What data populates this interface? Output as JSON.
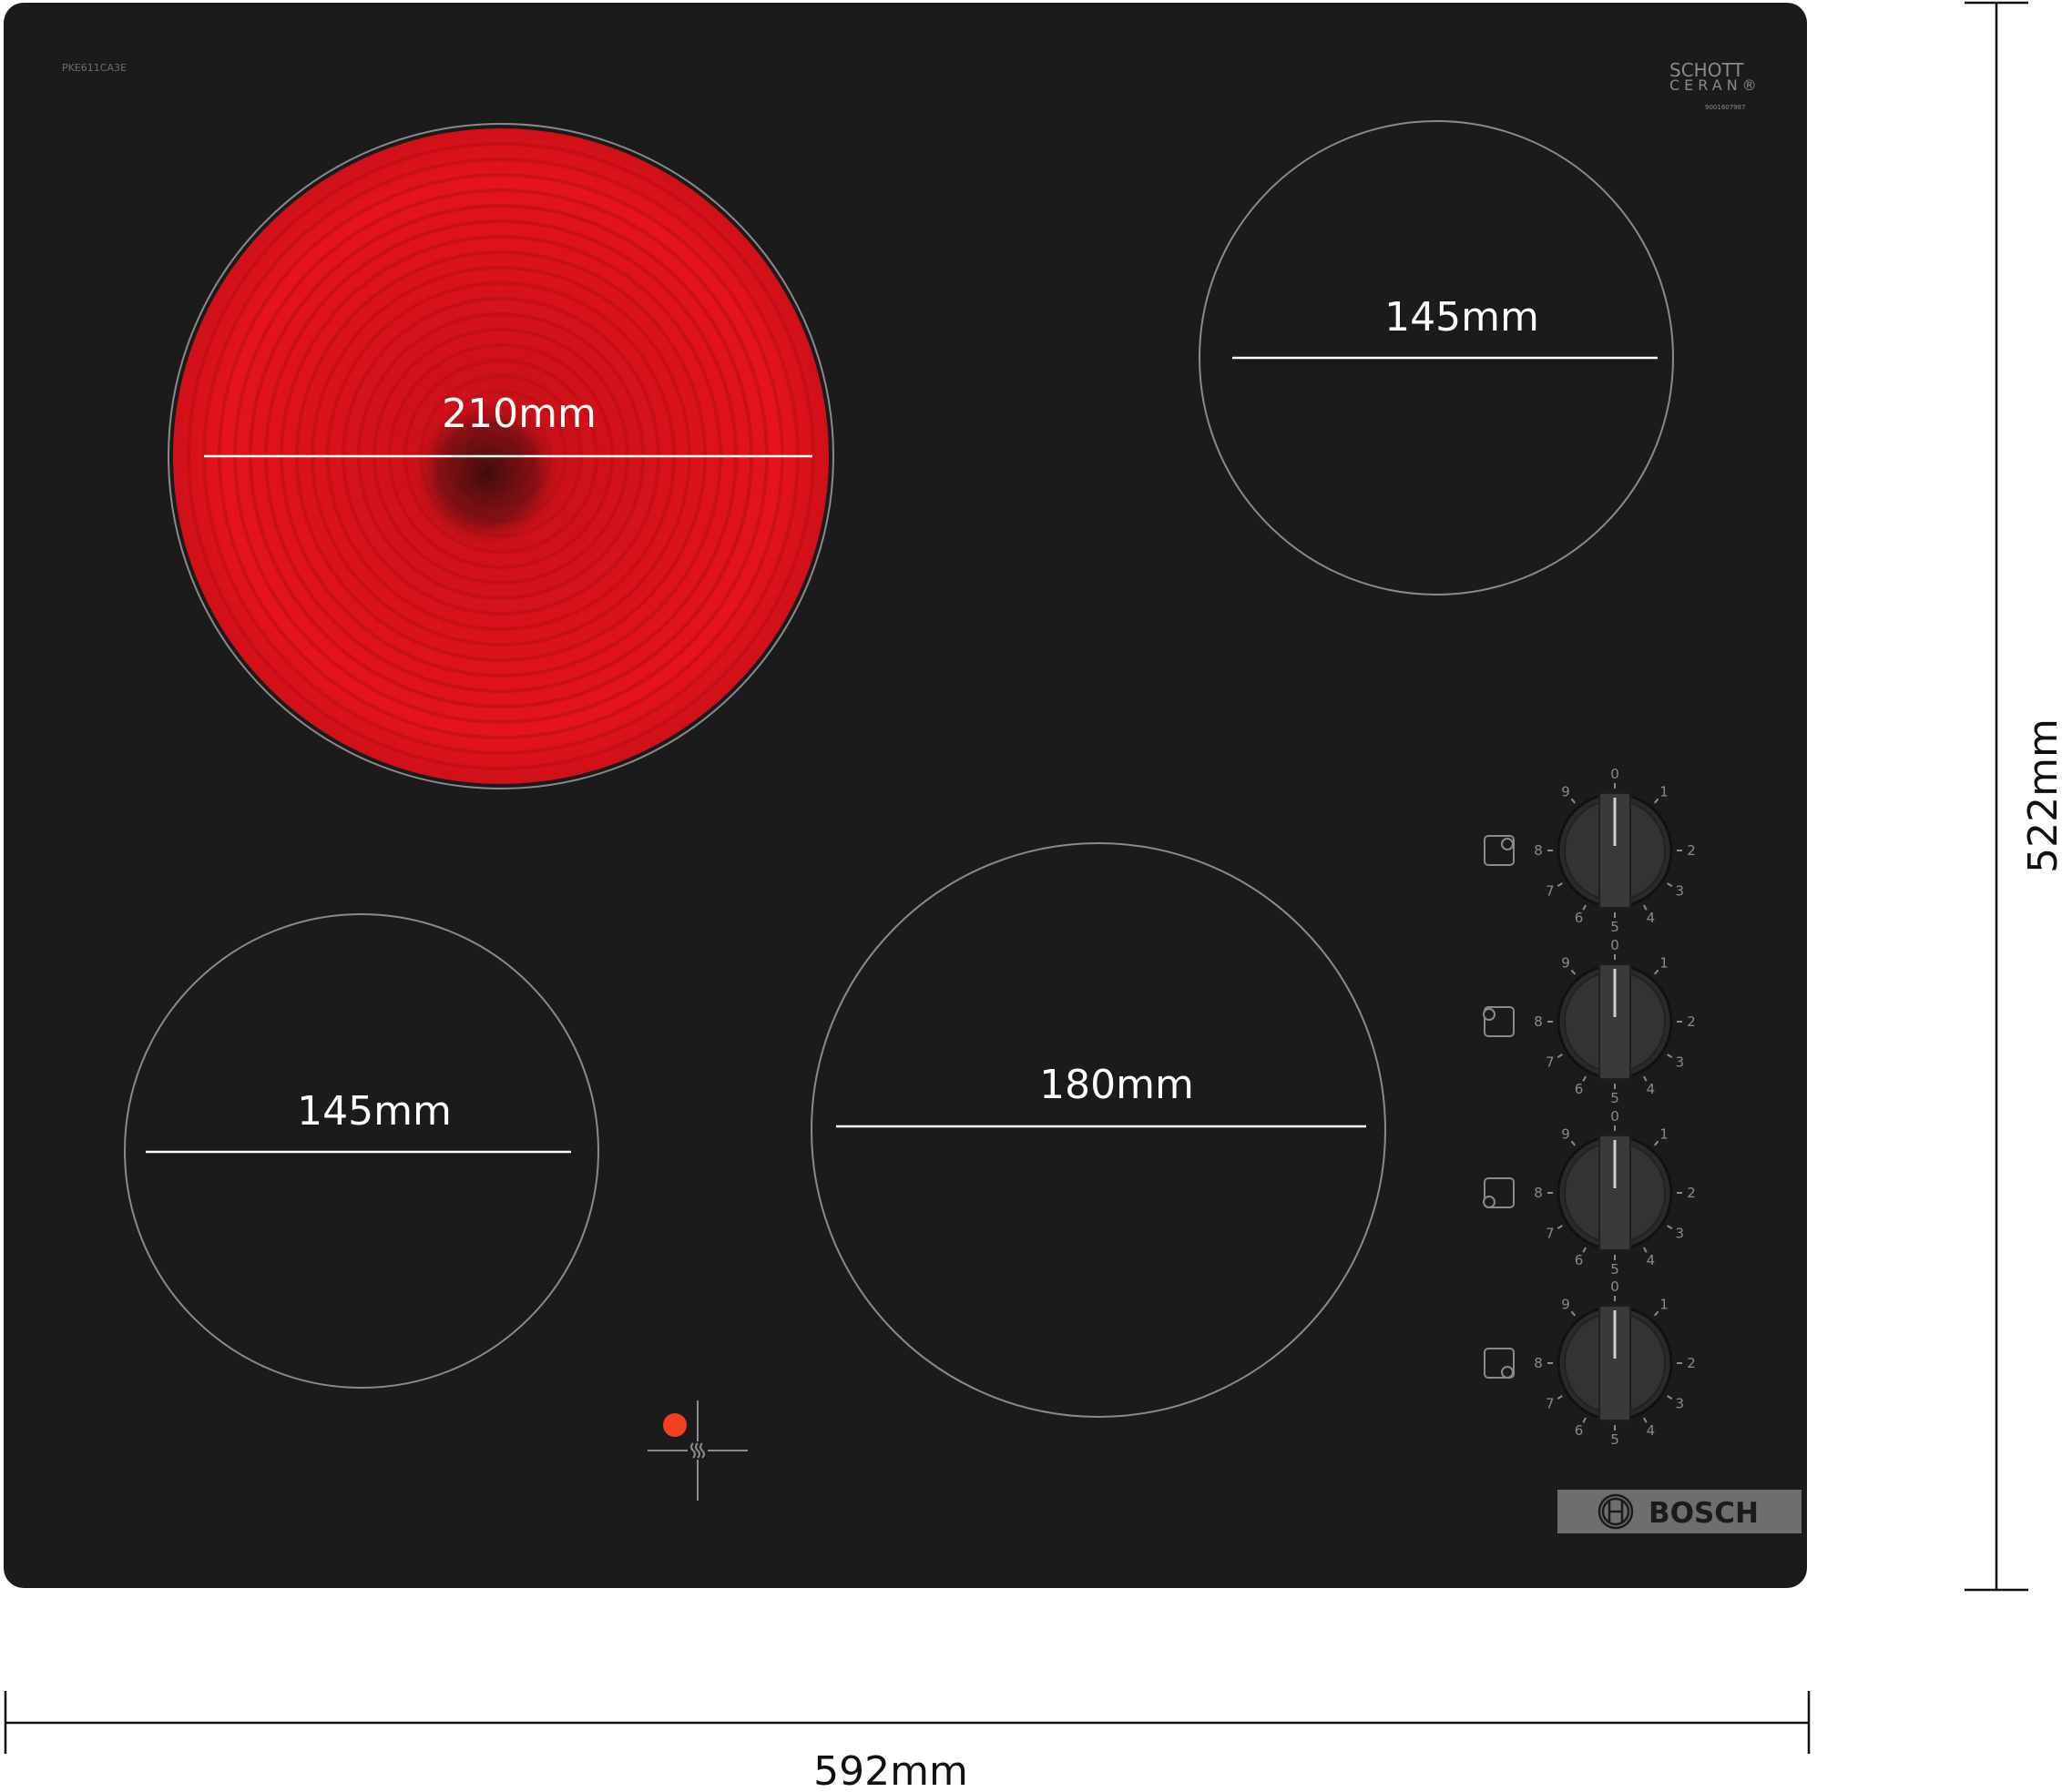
{
  "product": {
    "model_label": "PKE611CA3E",
    "glass_brand_line1": "SCHOTT",
    "glass_brand_line2": "CERAN®",
    "glass_serial": "9001607987",
    "brand_logo": "BOSCH"
  },
  "zones": [
    {
      "position": "top-left",
      "diameter_label": "210mm",
      "state": "heating",
      "color": "#e3121c"
    },
    {
      "position": "top-right",
      "diameter_label": "145mm",
      "state": "off"
    },
    {
      "position": "bottom-left",
      "diameter_label": "145mm",
      "state": "off"
    },
    {
      "position": "bottom-center",
      "diameter_label": "180mm",
      "state": "off"
    }
  ],
  "knobs": {
    "scale_labels": [
      "0",
      "1",
      "2",
      "3",
      "4",
      "5",
      "6",
      "7",
      "8",
      "9"
    ],
    "items": [
      {
        "zone_icon": "zone-top-right-icon"
      },
      {
        "zone_icon": "zone-top-left-icon"
      },
      {
        "zone_icon": "zone-bottom-left-icon"
      },
      {
        "zone_icon": "zone-bottom-right-icon"
      }
    ]
  },
  "residual_heat_indicator": {
    "icon": "residual-heat-icon",
    "color": "#f0401e"
  },
  "dimensions": {
    "width_label": "592mm",
    "depth_label": "522mm"
  },
  "colors": {
    "glass": "#1b1b1b",
    "zone_outline": "#8a8a8a",
    "badge": "#6e6e6e"
  }
}
